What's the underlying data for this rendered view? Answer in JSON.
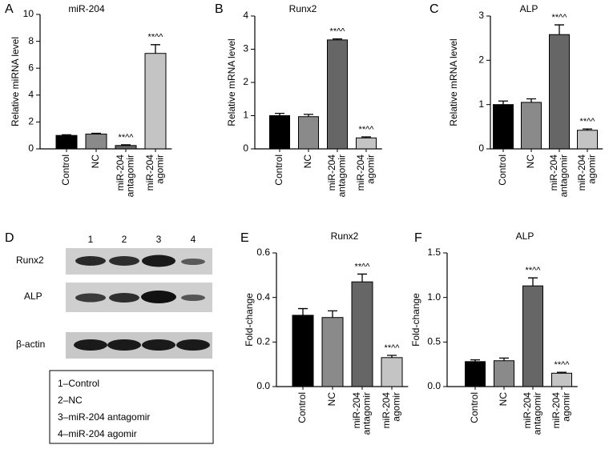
{
  "chart_data": [
    {
      "type": "bar",
      "panel_label": "A",
      "title": "miR-204",
      "ylabel": "Relative miRNA level",
      "categories": [
        "Control",
        "NC",
        "miR-204 antagomir",
        "miR-204 agomir"
      ],
      "values": [
        1.0,
        1.1,
        0.25,
        7.1
      ],
      "errors": [
        0.05,
        0.06,
        0.05,
        0.65
      ],
      "colors": [
        "#000000",
        "#8a8a8a",
        "#666666",
        "#c4c4c4"
      ],
      "annotations": [
        null,
        null,
        "**^^",
        "**^^"
      ],
      "ylim": [
        0,
        10
      ],
      "yticks": [
        0,
        2,
        4,
        6,
        8,
        10
      ]
    },
    {
      "type": "bar",
      "panel_label": "B",
      "title": "Runx2",
      "ylabel": "Relative mRNA level",
      "categories": [
        "Control",
        "NC",
        "miR-204 antagomir",
        "miR-204 agomir"
      ],
      "values": [
        1.0,
        0.97,
        3.28,
        0.33
      ],
      "errors": [
        0.07,
        0.07,
        0.03,
        0.03
      ],
      "colors": [
        "#000000",
        "#8a8a8a",
        "#666666",
        "#c4c4c4"
      ],
      "annotations": [
        null,
        null,
        "**^^",
        "**^^"
      ],
      "ylim": [
        0,
        4
      ],
      "yticks": [
        0,
        1,
        2,
        3,
        4
      ]
    },
    {
      "type": "bar",
      "panel_label": "C",
      "title": "ALP",
      "ylabel": "Relative mRNA level",
      "categories": [
        "Control",
        "NC",
        "miR-204 antagomir",
        "miR-204 agomir"
      ],
      "values": [
        1.0,
        1.05,
        2.58,
        0.42
      ],
      "errors": [
        0.08,
        0.08,
        0.22,
        0.03
      ],
      "colors": [
        "#000000",
        "#8a8a8a",
        "#666666",
        "#c4c4c4"
      ],
      "annotations": [
        null,
        null,
        "**^^",
        "**^^"
      ],
      "ylim": [
        0,
        3
      ],
      "yticks": [
        0,
        1,
        2,
        3
      ]
    },
    {
      "type": "bar",
      "panel_label": "E",
      "title": "Runx2",
      "ylabel": "Fold-change",
      "categories": [
        "Control",
        "NC",
        "miR-204 antagomir",
        "miR-204 agomir"
      ],
      "values": [
        0.32,
        0.31,
        0.47,
        0.13
      ],
      "errors": [
        0.03,
        0.03,
        0.035,
        0.01
      ],
      "colors": [
        "#000000",
        "#8a8a8a",
        "#666666",
        "#c4c4c4"
      ],
      "annotations": [
        null,
        null,
        "**^^",
        "**^^"
      ],
      "ylim": [
        0,
        0.6
      ],
      "yticks": [
        {
          "value": 0,
          "label": "0.0"
        },
        0.2,
        0.4,
        0.6
      ]
    },
    {
      "type": "bar",
      "panel_label": "F",
      "title": "ALP",
      "ylabel": "Fold-change",
      "categories": [
        "Control",
        "NC",
        "miR-204 antagomir",
        "miR-204 agomir"
      ],
      "values": [
        0.28,
        0.29,
        1.13,
        0.15
      ],
      "errors": [
        0.02,
        0.03,
        0.09,
        0.01
      ],
      "colors": [
        "#000000",
        "#8a8a8a",
        "#666666",
        "#c4c4c4"
      ],
      "annotations": [
        null,
        null,
        "**^^",
        "**^^"
      ],
      "ylim": [
        0,
        1.5
      ],
      "yticks": [
        {
          "value": 0,
          "label": "0.0"
        },
        0.5,
        {
          "value": 1,
          "label": "1.0"
        },
        1.5
      ]
    }
  ],
  "blot_panel": {
    "panel_label": "D",
    "lanes": [
      "1",
      "2",
      "3",
      "4"
    ],
    "rows": [
      "Runx2",
      "ALP",
      "β-actin"
    ],
    "legend": [
      "1–Control",
      "2–NC",
      "3–miR-204 antagomir",
      "4–miR-204 agomir"
    ]
  }
}
